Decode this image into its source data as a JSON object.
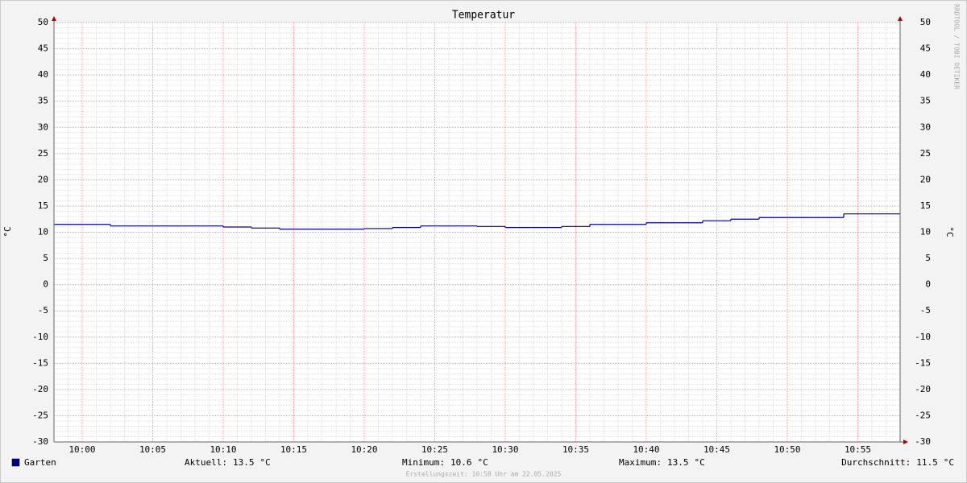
{
  "chart_data": {
    "type": "line",
    "step": true,
    "title": "Temperatur",
    "y_label": "°C",
    "x": [
      "09:58",
      "10:02",
      "10:10",
      "10:12",
      "10:14",
      "10:20",
      "10:22",
      "10:24",
      "10:28",
      "10:30",
      "10:34",
      "10:36",
      "10:40",
      "10:44",
      "10:46",
      "10:48",
      "10:54"
    ],
    "series": [
      {
        "name": "Garten",
        "color": "#00008b",
        "values": [
          11.5,
          11.2,
          11.0,
          10.8,
          10.6,
          10.7,
          10.9,
          11.2,
          11.1,
          10.9,
          11.1,
          11.5,
          11.8,
          12.2,
          12.5,
          12.8,
          13.5
        ]
      }
    ],
    "xlim": [
      "09:58",
      "10:58"
    ],
    "xticks": [
      "10:00",
      "10:05",
      "10:10",
      "10:15",
      "10:20",
      "10:25",
      "10:30",
      "10:35",
      "10:40",
      "10:45",
      "10:50",
      "10:55"
    ],
    "ylim": [
      -30,
      50
    ],
    "yticks": [
      -30,
      -25,
      -20,
      -15,
      -10,
      -5,
      0,
      5,
      10,
      15,
      20,
      25,
      30,
      35,
      40,
      45,
      50
    ],
    "grid": true,
    "stats": [
      {
        "label": "Aktuell:",
        "value": 13.5,
        "unit": "°C"
      },
      {
        "label": "Minimum:",
        "value": 10.6,
        "unit": "°C"
      },
      {
        "label": "Maximum:",
        "value": 13.5,
        "unit": "°C"
      },
      {
        "label": "Durchschnitt:",
        "value": 11.5,
        "unit": "°C"
      }
    ],
    "footer": "Erstellungszeit: 10:58 Uhr am 22.05.2025",
    "watermark": "RRDTOOL / TOBI OETIKER"
  }
}
